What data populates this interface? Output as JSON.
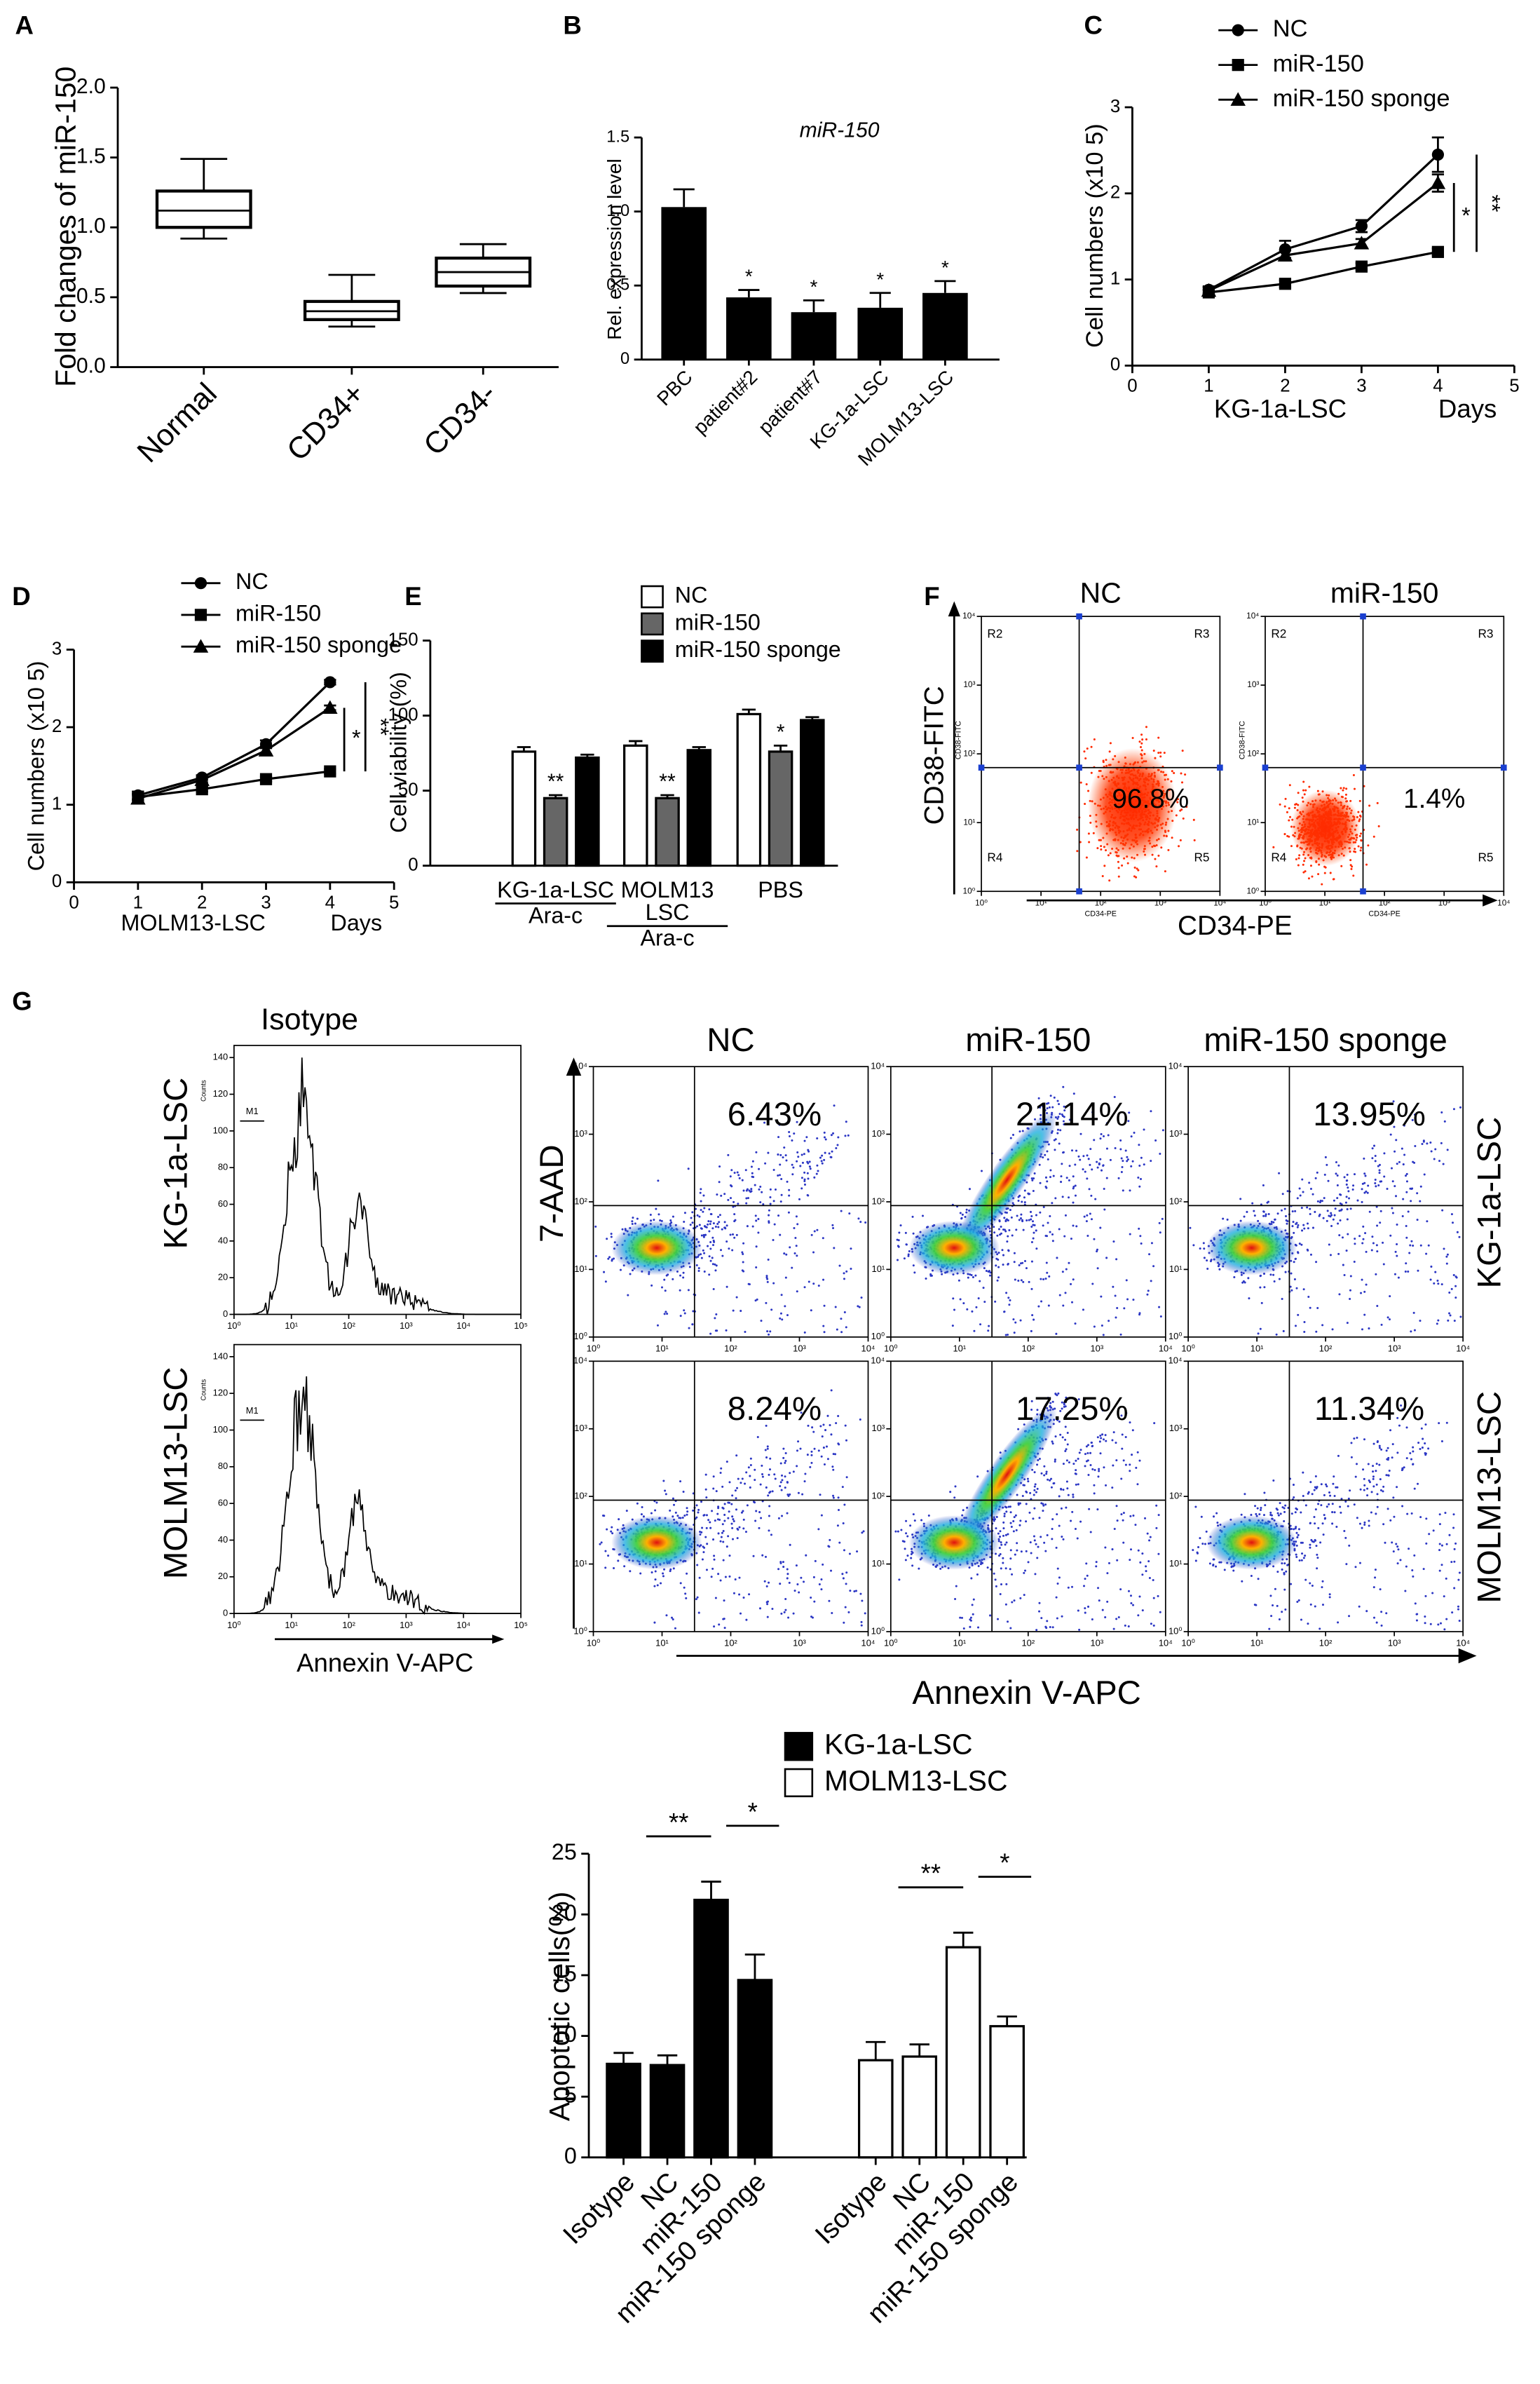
{
  "panel_labels": [
    "A",
    "B",
    "C",
    "D",
    "E",
    "F",
    "G"
  ],
  "chart_data": [
    {
      "type": "box",
      "y_label": "Fold changes of miR-150",
      "categories": [
        "Normal",
        "CD34+",
        "CD34-"
      ],
      "min": [
        0.92,
        0.29,
        0.53
      ],
      "q1": [
        1.0,
        0.34,
        0.58
      ],
      "median": [
        1.12,
        0.4,
        0.68
      ],
      "q3": [
        1.26,
        0.47,
        0.78
      ],
      "max": [
        1.49,
        0.66,
        0.88
      ],
      "color": "#000000",
      "ylim": [
        0,
        2
      ],
      "yticks": [
        {
          "value": 0,
          "label": "0.0"
        },
        0.5,
        {
          "value": 1,
          "label": "1.0"
        },
        1.5,
        {
          "value": 2,
          "label": "2.0"
        }
      ]
    },
    {
      "type": "bar",
      "title": "miR-150",
      "y_label": "Rel. expression level",
      "categories": [
        "PBC",
        "patient#2",
        "patient#7",
        "KG-1a-LSC",
        "MOLM13-LSC"
      ],
      "values": [
        1.03,
        0.42,
        0.32,
        0.35,
        0.45
      ],
      "errors": [
        0.12,
        0.05,
        0.08,
        0.1,
        0.08
      ],
      "annotations": [
        null,
        "*",
        "*",
        "*",
        "*"
      ],
      "color": "#000000",
      "ylim": [
        0,
        1.5
      ],
      "yticks": [
        0,
        0.5,
        {
          "value": 1,
          "label": "1.0"
        },
        1.5
      ]
    },
    {
      "type": "line",
      "y_label": "Cell numbers (x10 5)",
      "x_label": "Days",
      "subtitle": "KG-1a-LSC",
      "x": [
        1,
        2,
        3,
        4
      ],
      "series": [
        {
          "name": "NC",
          "marker": "circle",
          "color": "#000000",
          "values": [
            0.88,
            1.35,
            1.62,
            2.45
          ],
          "errors": [
            0.04,
            0.1,
            0.07,
            0.2
          ]
        },
        {
          "name": "miR-150",
          "marker": "square",
          "color": "#000000",
          "values": [
            0.85,
            0.95,
            1.15,
            1.32
          ],
          "errors": [
            0.03,
            0.04,
            0.04,
            0.04
          ]
        },
        {
          "name": "miR-150 sponge",
          "marker": "triangle",
          "color": "#000000",
          "values": [
            0.87,
            1.28,
            1.42,
            2.12
          ],
          "errors": [
            0.04,
            0.06,
            0.05,
            0.1
          ]
        }
      ],
      "significance": [
        "*",
        "**"
      ],
      "xlim": [
        0,
        5
      ],
      "xticks": [
        0,
        1,
        2,
        3,
        4,
        5
      ],
      "ylim": [
        0,
        3
      ],
      "yticks": [
        0,
        1,
        2,
        3
      ]
    },
    {
      "type": "line",
      "y_label": "Cell numbers (x10 5)",
      "x_label": "Days",
      "subtitle": "MOLM13-LSC",
      "x": [
        1,
        2,
        3,
        4
      ],
      "series": [
        {
          "name": "NC",
          "marker": "circle",
          "color": "#000000",
          "values": [
            1.12,
            1.35,
            1.78,
            2.58
          ],
          "errors": [
            0.05,
            0.03,
            0.05,
            0.03
          ]
        },
        {
          "name": "miR-150",
          "marker": "square",
          "color": "#000000",
          "values": [
            1.1,
            1.2,
            1.33,
            1.43
          ],
          "errors": [
            0.04,
            0.03,
            0.03,
            0.03
          ]
        },
        {
          "name": "miR-150 sponge",
          "marker": "triangle",
          "color": "#000000",
          "values": [
            1.08,
            1.32,
            1.7,
            2.25
          ],
          "errors": [
            0.06,
            0.03,
            0.05,
            0.03
          ]
        }
      ],
      "significance": [
        "*",
        "**"
      ],
      "xlim": [
        0,
        5
      ],
      "xticks": [
        0,
        1,
        2,
        3,
        4,
        5
      ],
      "ylim": [
        0,
        3
      ],
      "yticks": [
        0,
        1,
        2,
        3
      ]
    },
    {
      "type": "grouped_bar",
      "group_by": "category",
      "y_label": "Cell viability (%)",
      "categories": [
        [
          "KG-1a-LSC"
        ],
        [
          "MOLM13",
          "LSC"
        ],
        [
          "PBS"
        ]
      ],
      "treatment_labels": [
        "Ara-c",
        "Ara-c"
      ],
      "series": [
        {
          "name": "NC",
          "color": "#ffffff",
          "values": [
            76,
            80,
            101
          ],
          "errors": [
            3,
            3,
            3
          ]
        },
        {
          "name": "miR-150",
          "color": "#666666",
          "values": [
            45,
            45,
            76
          ],
          "errors": [
            2,
            2,
            4
          ],
          "annotations": [
            "**",
            "**",
            "*"
          ]
        },
        {
          "name": "miR-150 sponge",
          "color": "#000000",
          "values": [
            72,
            77,
            97
          ],
          "errors": [
            2,
            2,
            2
          ]
        }
      ],
      "ylim": [
        0,
        150
      ],
      "yticks": [
        0,
        50,
        100,
        150
      ]
    },
    {
      "type": "grouped_bar",
      "group_by": "series",
      "y_label": "Apoptotic cells(%)",
      "categories": [
        "Isotype",
        "NC",
        "miR-150",
        "miR-150 sponge"
      ],
      "series": [
        {
          "name": "KG-1a-LSC",
          "color": "#000000",
          "values": [
            7.7,
            7.6,
            21.2,
            14.6
          ],
          "errors": [
            0.9,
            0.8,
            1.5,
            2.1
          ]
        },
        {
          "name": "MOLM13-LSC",
          "color": "#ffffff",
          "values": [
            8.0,
            8.3,
            17.3,
            10.8
          ],
          "errors": [
            1.5,
            1.0,
            1.2,
            0.8
          ]
        }
      ],
      "significance": [
        [
          "**",
          "*"
        ],
        [
          "**",
          "*"
        ]
      ],
      "ylim": [
        0,
        25
      ],
      "yticks": [
        0,
        5,
        10,
        15,
        20,
        25
      ]
    }
  ],
  "flow_f": {
    "plots": [
      {
        "title": "NC",
        "percent": "96.8%"
      },
      {
        "title": "miR-150",
        "percent": "1.4%"
      }
    ],
    "quadrants": [
      "R2",
      "R3",
      "R4",
      "R5"
    ],
    "ticks": [
      "10⁰",
      "10¹",
      "10²",
      "10³",
      "10⁴"
    ],
    "inner_x_label": "CD34-PE",
    "inner_y_label": "CD38-FITC",
    "x_label": "CD34-PE",
    "y_label": "CD38-FITC"
  },
  "flow_g": {
    "isotype_title": "Isotype",
    "row_labels": [
      "KG-1a-LSC",
      "MOLM13-LSC"
    ],
    "hist_y_label": "Counts",
    "gate_label": "M1",
    "hist_yticks": [
      0,
      20,
      40,
      60,
      80,
      100,
      120,
      140
    ],
    "hist_xticks": [
      "10⁰",
      "10¹",
      "10²",
      "10³",
      "10⁴",
      "10⁵"
    ],
    "hist_x_label": "Annexin V-APC",
    "columns": [
      "NC",
      "miR-150",
      "miR-150 sponge"
    ],
    "percents": [
      [
        "6.43%",
        "21.14%",
        "13.95%"
      ],
      [
        "8.24%",
        "17.25%",
        "11.34%"
      ]
    ],
    "ticks": [
      "10⁰",
      "10¹",
      "10²",
      "10³",
      "10⁴"
    ],
    "y_label": "7-AAD",
    "x_label": "Annexin V-APC"
  }
}
